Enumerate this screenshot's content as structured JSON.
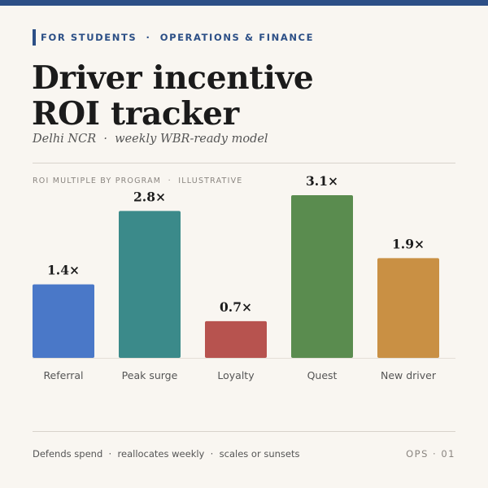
{
  "header": {
    "eyebrow": "FOR STUDENTS  ·  OPERATIONS & FINANCE",
    "title_line1": "Driver incentive",
    "title_line2": "ROI tracker",
    "subtitle": "Delhi NCR  ·  weekly WBR-ready model"
  },
  "chart_caption": "ROI MULTIPLE BY PROGRAM  ·  ILLUSTRATIVE",
  "chart_data": {
    "type": "bar",
    "categories": [
      "Referral",
      "Peak surge",
      "Loyalty",
      "Quest",
      "New driver"
    ],
    "values": [
      1.4,
      2.8,
      0.7,
      3.1,
      1.9
    ],
    "data_labels": [
      "1.4×",
      "2.8×",
      "0.7×",
      "3.1×",
      "1.9×"
    ],
    "colors": [
      "#4a78c8",
      "#3b8a8a",
      "#b7534f",
      "#5a8c4f",
      "#c99044"
    ],
    "ylim": [
      0,
      3.1
    ],
    "grid": false
  },
  "footer": {
    "left": "Defends spend  ·  reallocates weekly  ·  scales or sunsets",
    "right": "OPS · 01"
  }
}
